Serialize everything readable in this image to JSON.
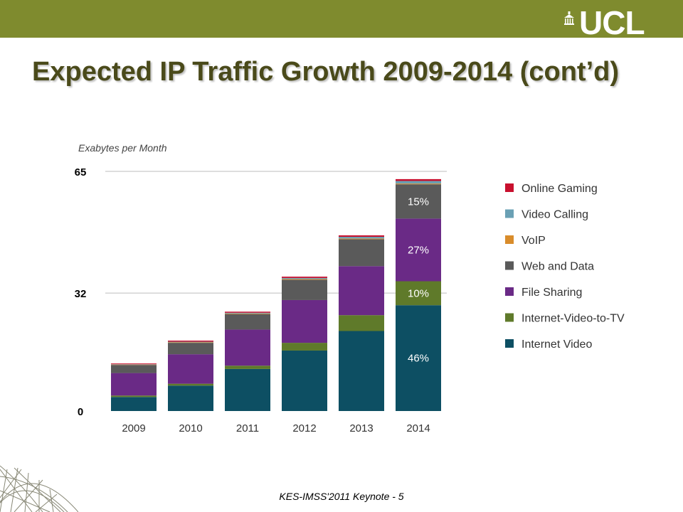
{
  "header": {
    "bar_color": "#7f8b2e",
    "logo_text": "UCL"
  },
  "slide": {
    "title": "Expected IP Traffic Growth 2009-2014 (cont’d)",
    "footer": "KES-IMSS'2011 Keynote - 5"
  },
  "chart_data": {
    "type": "bar",
    "stacked": true,
    "ylabel": "Exabytes per Month",
    "yticks": [
      0,
      32,
      65
    ],
    "ylim": [
      0,
      65
    ],
    "grid": true,
    "legend_position": "right",
    "categories": [
      "2009",
      "2010",
      "2011",
      "2012",
      "2013",
      "2014"
    ],
    "series": [
      {
        "name": "Internet Video",
        "color": "#0d4f63",
        "values": [
          3.8,
          6.9,
          11.4,
          16.4,
          21.7,
          28.7
        ],
        "labels": [
          "",
          "",
          "",
          "",
          "",
          "46%"
        ]
      },
      {
        "name": "Internet-Video-to-TV",
        "color": "#5f7a2a",
        "values": [
          0.4,
          0.5,
          0.9,
          2.1,
          4.3,
          6.5
        ],
        "labels": [
          "",
          "",
          "",
          "",
          "",
          "10%"
        ]
      },
      {
        "name": "File Sharing",
        "color": "#6a2a86",
        "values": [
          6.1,
          8.0,
          9.8,
          11.6,
          13.3,
          17.0
        ],
        "labels": [
          "",
          "",
          "",
          "",
          "",
          "27%"
        ]
      },
      {
        "name": "Web and Data",
        "color": "#5a5a5a",
        "values": [
          2.2,
          3.1,
          4.2,
          5.5,
          7.3,
          9.3
        ],
        "labels": [
          "",
          "",
          "",
          "",
          "",
          "15%"
        ]
      },
      {
        "name": "VoIP",
        "color": "#d98c2b",
        "values": [
          0.1,
          0.15,
          0.15,
          0.2,
          0.2,
          0.2
        ],
        "labels": [
          "",
          "",
          "",
          "",
          "",
          ""
        ]
      },
      {
        "name": "Video Calling",
        "color": "#6aa0b4",
        "values": [
          0.1,
          0.15,
          0.2,
          0.3,
          0.45,
          0.7
        ],
        "labels": [
          "",
          "",
          "",
          "",
          "",
          ""
        ]
      },
      {
        "name": "Online Gaming",
        "color": "#c8102e",
        "values": [
          0.2,
          0.3,
          0.3,
          0.35,
          0.4,
          0.5
        ],
        "labels": [
          "",
          "",
          "",
          "",
          "",
          ""
        ]
      }
    ],
    "legend_order": [
      "Online Gaming",
      "Video Calling",
      "VoIP",
      "Web and Data",
      "File Sharing",
      "Internet-Video-to-TV",
      "Internet Video"
    ]
  }
}
